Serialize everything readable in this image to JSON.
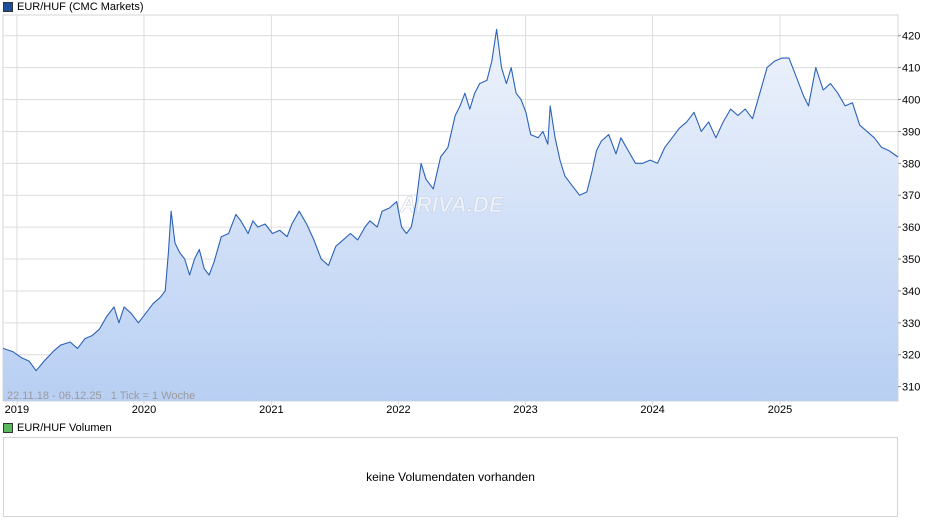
{
  "legend": {
    "main_label": "EUR/HUF (CMC Markets)",
    "main_color": "#1f4e9a",
    "volume_label": "EUR/HUF Volumen",
    "volume_color": "#5cb85c"
  },
  "range_info": "22.11.18 - 06.12.25   1 Tick = 1 Woche",
  "watermark": "ARIVA.DE",
  "volume_panel": {
    "message": "keine Volumendaten vorhanden"
  },
  "colors": {
    "line": "#2a62b8",
    "fill_top": "#eef3fc",
    "fill_bottom": "#b8cff3",
    "grid": "#dcdcdc"
  },
  "chart_data": {
    "type": "area",
    "series": [
      {
        "name": "EUR/HUF (CMC Markets)",
        "points": [
          [
            "2018-11-22",
            322
          ],
          [
            "2018-12-20",
            321
          ],
          [
            "2019-01-15",
            319
          ],
          [
            "2019-02-05",
            318
          ],
          [
            "2019-02-25",
            315
          ],
          [
            "2019-03-20",
            318
          ],
          [
            "2019-04-15",
            321
          ],
          [
            "2019-05-06",
            323
          ],
          [
            "2019-06-03",
            324
          ],
          [
            "2019-06-24",
            322
          ],
          [
            "2019-07-15",
            325
          ],
          [
            "2019-08-05",
            326
          ],
          [
            "2019-08-26",
            328
          ],
          [
            "2019-09-16",
            332
          ],
          [
            "2019-10-07",
            335
          ],
          [
            "2019-10-21",
            330
          ],
          [
            "2019-11-05",
            335
          ],
          [
            "2019-11-25",
            333
          ],
          [
            "2019-12-16",
            330
          ],
          [
            "2020-01-06",
            333
          ],
          [
            "2020-01-27",
            336
          ],
          [
            "2020-02-17",
            338
          ],
          [
            "2020-03-02",
            340
          ],
          [
            "2020-03-11",
            352
          ],
          [
            "2020-03-19",
            365
          ],
          [
            "2020-03-30",
            355
          ],
          [
            "2020-04-13",
            352
          ],
          [
            "2020-04-27",
            350
          ],
          [
            "2020-05-11",
            345
          ],
          [
            "2020-05-25",
            350
          ],
          [
            "2020-06-08",
            353
          ],
          [
            "2020-06-22",
            347
          ],
          [
            "2020-07-06",
            345
          ],
          [
            "2020-07-20",
            349
          ],
          [
            "2020-08-10",
            357
          ],
          [
            "2020-08-31",
            358
          ],
          [
            "2020-09-21",
            364
          ],
          [
            "2020-10-05",
            362
          ],
          [
            "2020-10-26",
            358
          ],
          [
            "2020-11-09",
            362
          ],
          [
            "2020-11-23",
            360
          ],
          [
            "2020-12-14",
            361
          ],
          [
            "2021-01-04",
            358
          ],
          [
            "2021-01-25",
            359
          ],
          [
            "2021-02-15",
            357
          ],
          [
            "2021-03-01",
            361
          ],
          [
            "2021-03-22",
            365
          ],
          [
            "2021-04-12",
            361
          ],
          [
            "2021-05-03",
            356
          ],
          [
            "2021-05-24",
            350
          ],
          [
            "2021-06-14",
            348
          ],
          [
            "2021-07-05",
            354
          ],
          [
            "2021-07-26",
            356
          ],
          [
            "2021-08-16",
            358
          ],
          [
            "2021-09-06",
            356
          ],
          [
            "2021-09-27",
            360
          ],
          [
            "2021-10-11",
            362
          ],
          [
            "2021-11-01",
            360
          ],
          [
            "2021-11-15",
            365
          ],
          [
            "2021-12-06",
            366
          ],
          [
            "2021-12-27",
            368
          ],
          [
            "2022-01-10",
            360
          ],
          [
            "2022-01-24",
            358
          ],
          [
            "2022-02-07",
            360
          ],
          [
            "2022-02-21",
            368
          ],
          [
            "2022-03-07",
            380
          ],
          [
            "2022-03-21",
            375
          ],
          [
            "2022-04-11",
            372
          ],
          [
            "2022-05-02",
            382
          ],
          [
            "2022-05-23",
            385
          ],
          [
            "2022-06-13",
            395
          ],
          [
            "2022-06-27",
            398
          ],
          [
            "2022-07-11",
            402
          ],
          [
            "2022-07-25",
            397
          ],
          [
            "2022-08-08",
            402
          ],
          [
            "2022-08-22",
            405
          ],
          [
            "2022-09-12",
            406
          ],
          [
            "2022-09-26",
            412
          ],
          [
            "2022-10-10",
            422
          ],
          [
            "2022-10-24",
            410
          ],
          [
            "2022-11-07",
            405
          ],
          [
            "2022-11-21",
            410
          ],
          [
            "2022-12-05",
            402
          ],
          [
            "2022-12-19",
            400
          ],
          [
            "2023-01-02",
            396
          ],
          [
            "2023-01-16",
            389
          ],
          [
            "2023-02-06",
            388
          ],
          [
            "2023-02-20",
            390
          ],
          [
            "2023-03-06",
            386
          ],
          [
            "2023-03-13",
            398
          ],
          [
            "2023-03-27",
            388
          ],
          [
            "2023-04-10",
            381
          ],
          [
            "2023-04-24",
            376
          ],
          [
            "2023-05-15",
            373
          ],
          [
            "2023-06-05",
            370
          ],
          [
            "2023-06-26",
            371
          ],
          [
            "2023-07-10",
            377
          ],
          [
            "2023-07-24",
            384
          ],
          [
            "2023-08-07",
            387
          ],
          [
            "2023-08-28",
            389
          ],
          [
            "2023-09-18",
            383
          ],
          [
            "2023-10-02",
            388
          ],
          [
            "2023-10-23",
            384
          ],
          [
            "2023-11-13",
            380
          ],
          [
            "2023-12-04",
            380
          ],
          [
            "2023-12-25",
            381
          ],
          [
            "2024-01-15",
            380
          ],
          [
            "2024-02-05",
            385
          ],
          [
            "2024-02-26",
            388
          ],
          [
            "2024-03-18",
            391
          ],
          [
            "2024-04-08",
            393
          ],
          [
            "2024-04-29",
            396
          ],
          [
            "2024-05-20",
            390
          ],
          [
            "2024-06-10",
            393
          ],
          [
            "2024-07-01",
            388
          ],
          [
            "2024-07-22",
            393
          ],
          [
            "2024-08-12",
            397
          ],
          [
            "2024-09-02",
            395
          ],
          [
            "2024-09-23",
            397
          ],
          [
            "2024-10-14",
            394
          ],
          [
            "2024-11-04",
            402
          ],
          [
            "2024-11-25",
            410
          ],
          [
            "2024-12-16",
            412
          ],
          [
            "2025-01-06",
            413
          ],
          [
            "2025-01-27",
            413
          ],
          [
            "2025-02-17",
            407
          ],
          [
            "2025-03-10",
            401
          ],
          [
            "2025-03-24",
            398
          ],
          [
            "2025-04-14",
            410
          ],
          [
            "2025-05-05",
            403
          ],
          [
            "2025-05-26",
            405
          ],
          [
            "2025-06-16",
            402
          ],
          [
            "2025-07-07",
            398
          ],
          [
            "2025-07-28",
            399
          ],
          [
            "2025-08-18",
            392
          ],
          [
            "2025-09-08",
            390
          ],
          [
            "2025-09-29",
            388
          ],
          [
            "2025-10-20",
            385
          ],
          [
            "2025-11-10",
            384
          ],
          [
            "2025-12-06",
            382
          ]
        ]
      }
    ],
    "x_ticks": [
      "2019",
      "2020",
      "2021",
      "2022",
      "2023",
      "2024",
      "2025"
    ],
    "y_ticks": [
      310,
      320,
      330,
      340,
      350,
      360,
      370,
      380,
      390,
      400,
      410,
      420
    ],
    "x_range": [
      "2018-11-22",
      "2025-12-06"
    ],
    "ylim": [
      305.5,
      426.5
    ],
    "grid": true,
    "y_axis_side": "right",
    "legend": "top-left"
  }
}
